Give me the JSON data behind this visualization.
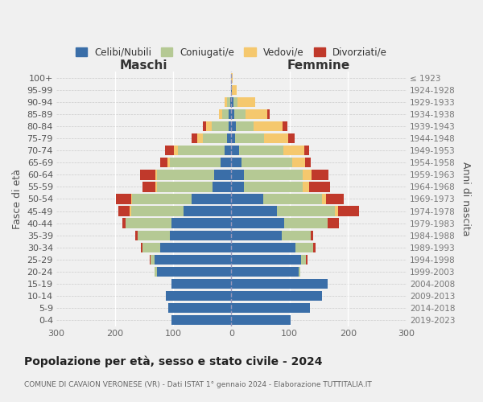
{
  "age_groups": [
    "100+",
    "95-99",
    "90-94",
    "85-89",
    "80-84",
    "75-79",
    "70-74",
    "65-69",
    "60-64",
    "55-59",
    "50-54",
    "45-49",
    "40-44",
    "35-39",
    "30-34",
    "25-29",
    "20-24",
    "15-19",
    "10-14",
    "5-9",
    "0-4"
  ],
  "birth_years": [
    "≤ 1923",
    "1924-1928",
    "1929-1933",
    "1934-1938",
    "1939-1943",
    "1944-1948",
    "1949-1953",
    "1954-1958",
    "1959-1963",
    "1964-1968",
    "1969-1973",
    "1974-1978",
    "1979-1983",
    "1984-1988",
    "1989-1993",
    "1994-1998",
    "1999-2003",
    "2004-2008",
    "2009-2013",
    "2014-2018",
    "2019-2023"
  ],
  "colors": {
    "celibi": "#3a6ea8",
    "coniugati": "#b5c994",
    "vedovi": "#f5c86e",
    "divorziati": "#c0392b"
  },
  "males": {
    "celibi": [
      0,
      1,
      2,
      4,
      5,
      7,
      12,
      18,
      30,
      32,
      68,
      82,
      102,
      105,
      122,
      132,
      128,
      103,
      112,
      108,
      102
    ],
    "coniugati": [
      0,
      0,
      5,
      12,
      28,
      42,
      80,
      88,
      98,
      96,
      102,
      90,
      80,
      55,
      30,
      6,
      4,
      0,
      0,
      0,
      0
    ],
    "vedovi": [
      0,
      0,
      5,
      5,
      10,
      10,
      6,
      4,
      2,
      2,
      2,
      2,
      0,
      0,
      0,
      0,
      0,
      0,
      0,
      0,
      0
    ],
    "divorziati": [
      0,
      0,
      0,
      0,
      6,
      9,
      16,
      12,
      26,
      22,
      26,
      20,
      5,
      5,
      3,
      2,
      0,
      0,
      0,
      0,
      0
    ]
  },
  "females": {
    "celibi": [
      0,
      1,
      3,
      5,
      8,
      6,
      13,
      18,
      22,
      22,
      55,
      78,
      90,
      86,
      110,
      120,
      115,
      165,
      155,
      135,
      102
    ],
    "coniugati": [
      0,
      0,
      8,
      20,
      30,
      50,
      76,
      86,
      100,
      100,
      100,
      100,
      75,
      50,
      30,
      8,
      3,
      0,
      0,
      0,
      0
    ],
    "vedovi": [
      2,
      8,
      30,
      36,
      50,
      42,
      36,
      22,
      15,
      12,
      8,
      5,
      0,
      0,
      0,
      0,
      0,
      0,
      0,
      0,
      0
    ],
    "divorziati": [
      0,
      0,
      0,
      5,
      8,
      10,
      8,
      10,
      30,
      36,
      30,
      36,
      20,
      5,
      5,
      3,
      0,
      0,
      0,
      0,
      0
    ]
  },
  "xlim": 300,
  "title": "Popolazione per età, sesso e stato civile - 2024",
  "subtitle": "COMUNE DI CAVAION VERONESE (VR) - Dati ISTAT 1° gennaio 2024 - Elaborazione TUTTITALIA.IT",
  "xlabel_left": "Maschi",
  "xlabel_right": "Femmine",
  "ylabel_left": "Fasce di età",
  "ylabel_right": "Anni di nascita",
  "legend_labels": [
    "Celibi/Nubili",
    "Coniugati/e",
    "Vedovi/e",
    "Divorziati/e"
  ],
  "background_color": "#f0f0f0",
  "xticks": [
    -300,
    -200,
    -100,
    0,
    100,
    200,
    300
  ]
}
